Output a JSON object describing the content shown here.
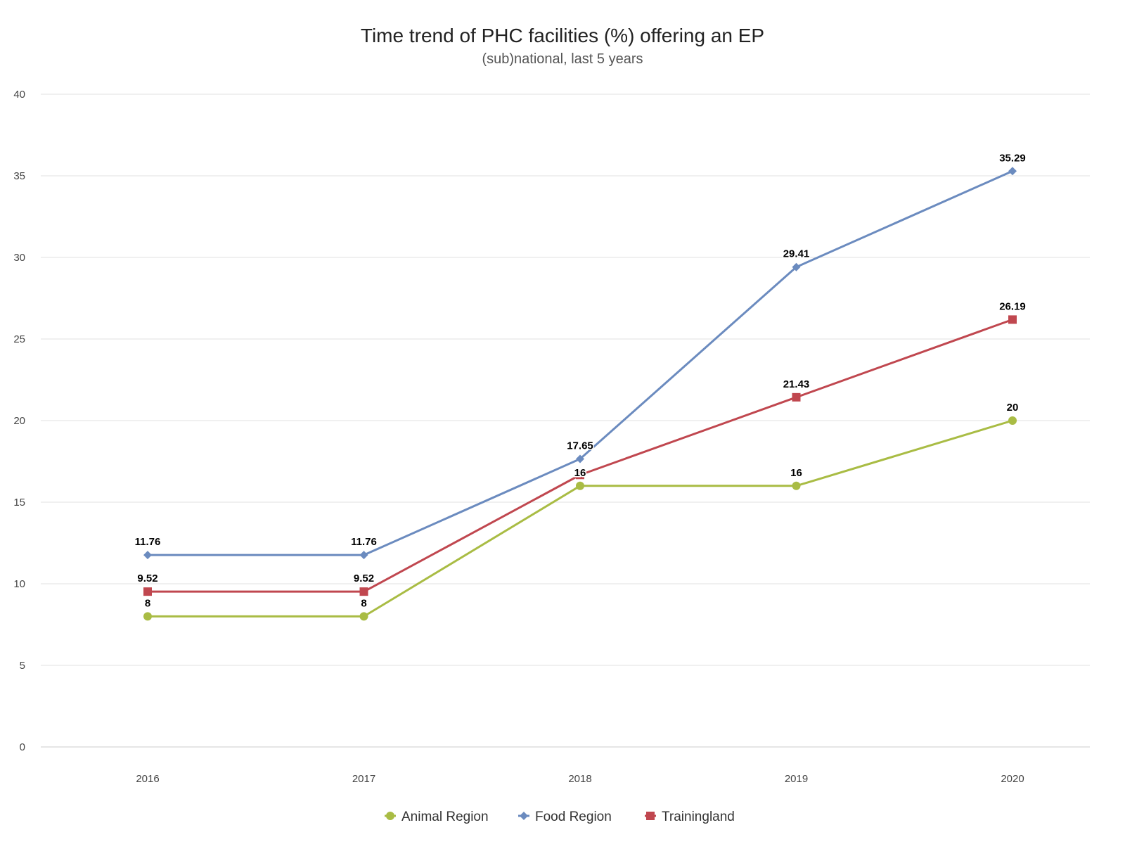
{
  "chart_data": {
    "type": "line",
    "title": "Time trend of PHC facilities (%) offering an EP",
    "subtitle": "(sub)national, last 5 years",
    "xlabel": "",
    "ylabel": "",
    "categories": [
      "2016",
      "2017",
      "2018",
      "2019",
      "2020"
    ],
    "ylim": [
      0,
      40
    ],
    "yticks": [
      0,
      5,
      10,
      15,
      20,
      25,
      30,
      35,
      40
    ],
    "grid": true,
    "legend_position": "bottom-center",
    "series": [
      {
        "name": "Animal Region",
        "color": "#a9bc44",
        "marker": "circle",
        "values": [
          8,
          8,
          16,
          16,
          20
        ],
        "labels": [
          "8",
          "8",
          "16",
          "16",
          "20"
        ]
      },
      {
        "name": "Food Region",
        "color": "#6b8bbf",
        "marker": "diamond",
        "values": [
          11.76,
          11.76,
          17.65,
          29.41,
          35.29
        ],
        "labels": [
          "11.76",
          "11.76",
          "17.65",
          "29.41",
          "35.29"
        ]
      },
      {
        "name": "Trainingland",
        "color": "#c0474f",
        "marker": "square",
        "values": [
          9.52,
          9.52,
          16.67,
          21.43,
          26.19
        ],
        "labels": [
          "9.52",
          "9.52",
          "",
          "21.43",
          "26.19"
        ]
      }
    ]
  }
}
